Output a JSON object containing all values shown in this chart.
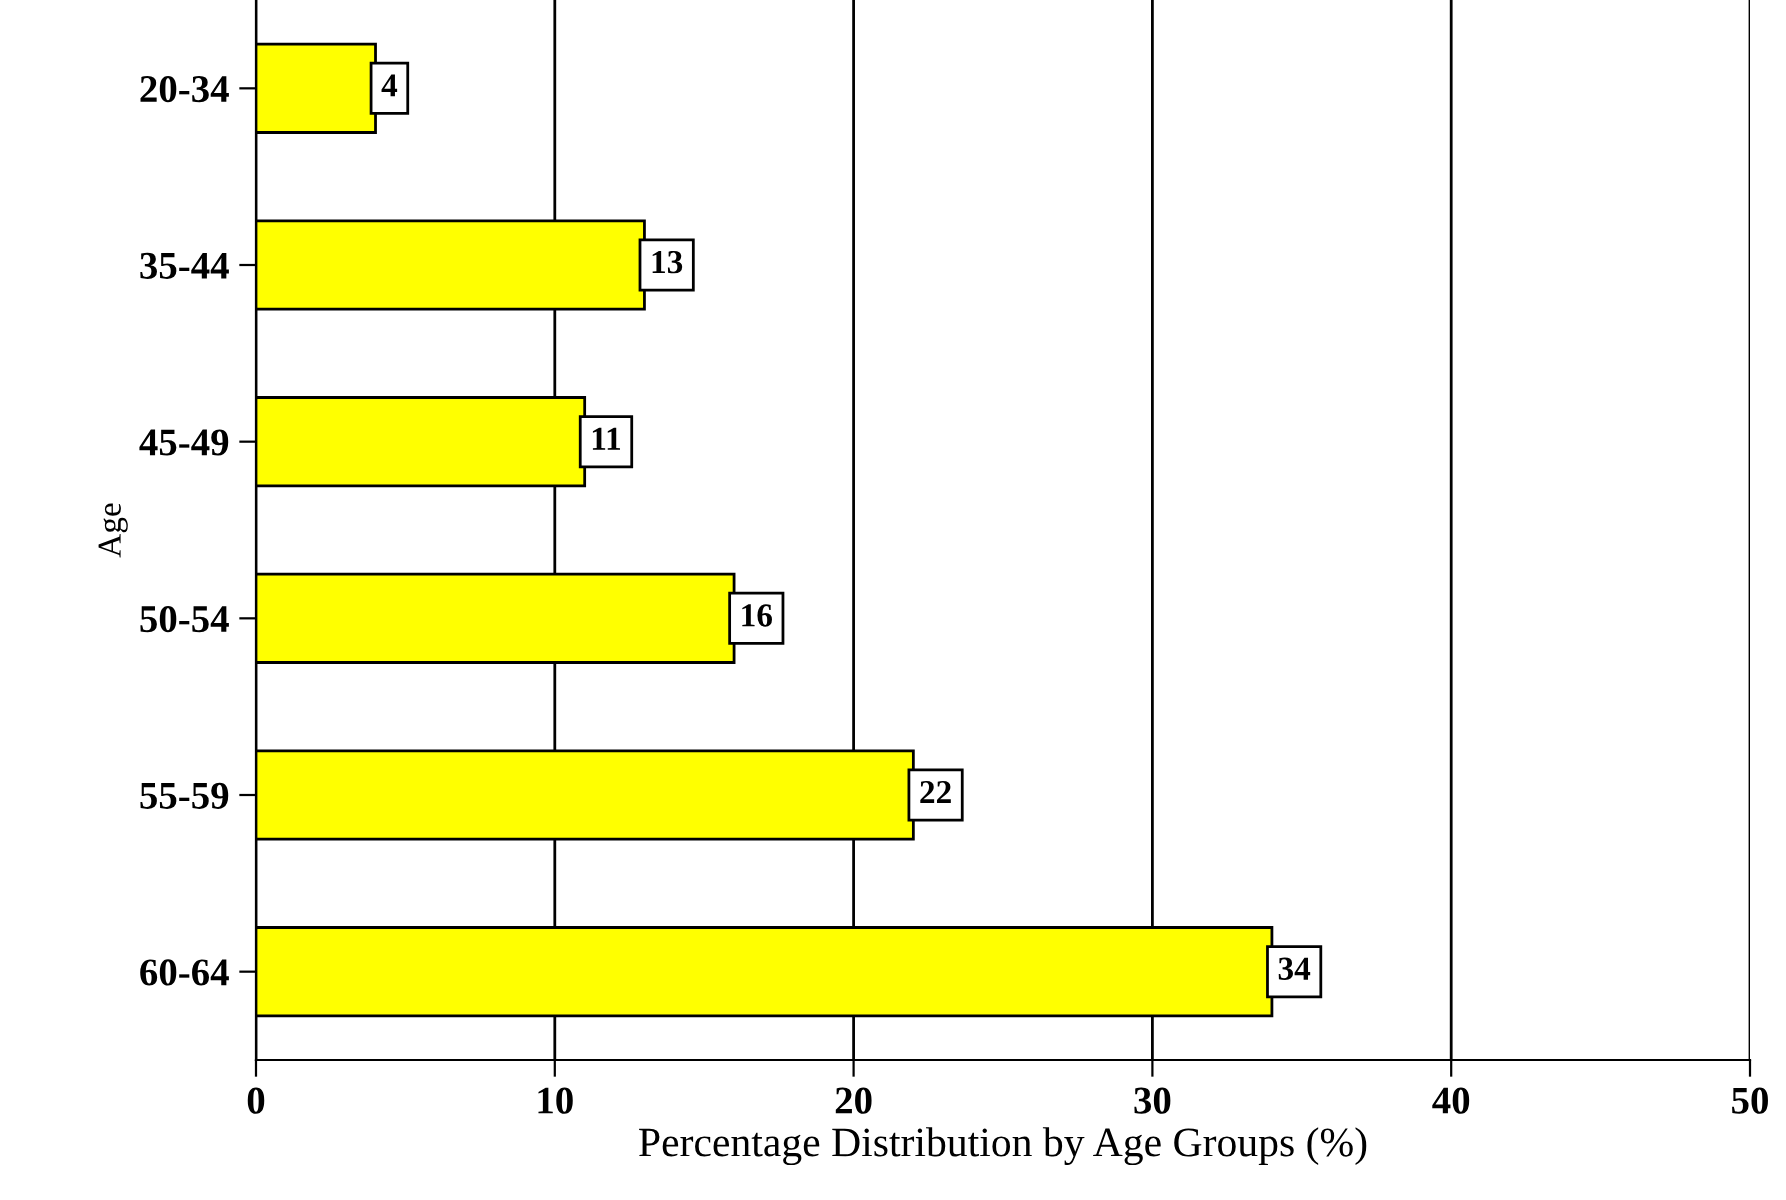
{
  "chart_data": {
    "type": "bar",
    "orientation": "horizontal",
    "categories": [
      "20-34",
      "35-44",
      "45-49",
      "50-54",
      "55-59",
      "60-64"
    ],
    "values": [
      4,
      13,
      11,
      16,
      22,
      34
    ],
    "color": "#ffff00",
    "xlim": [
      0,
      50
    ],
    "xticks": [
      0,
      10,
      20,
      30,
      40,
      50
    ],
    "xlabel": "Percentage Distribution by Age Groups (%)",
    "ylabel": "Age",
    "grid": "x",
    "data_labels": true
  }
}
